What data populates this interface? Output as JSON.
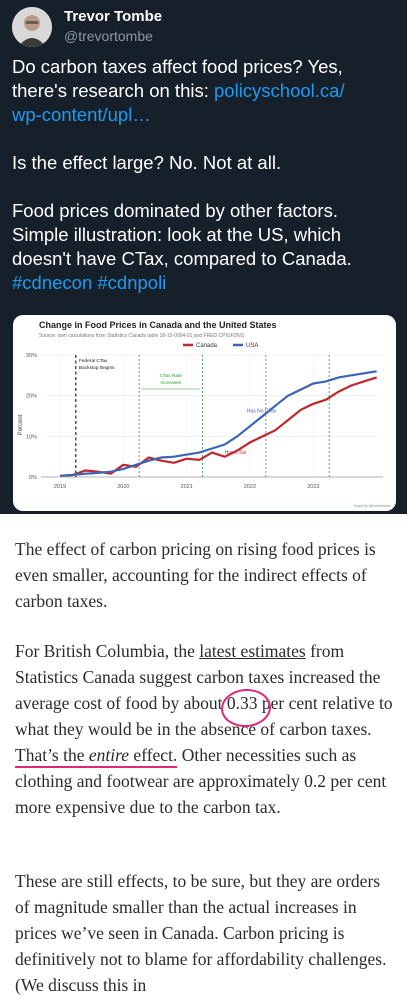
{
  "tweet": {
    "author_name": "Trevor Tombe",
    "author_handle": "@trevortombe",
    "line1": "Do carbon taxes affect food prices? Yes,",
    "line2_pre": "there's research on this: ",
    "link_part1": "policyschool.ca/",
    "link_part2": "wp-content/upl…",
    "para2": "Is the effect large? No. Not at all.",
    "para3_line1": "Food prices dominated by other factors.",
    "para3_line2": "Simple illustration: look at the US, which",
    "para3_line3": "doesn't have CTax, compared to Canada.",
    "hashtags": "#cdnecon #cdnpoli",
    "colors": {
      "background": "#15202b",
      "link": "#1d9bf0",
      "muted": "#8b98a5"
    }
  },
  "chart_data": {
    "type": "line",
    "title": "Change in Food Prices in Canada and the United States",
    "subtitle": "Source: own calculations from Statistics Canada table 18-10-0004-01 and FRED CPIUFDNS",
    "ylabel": "Percent",
    "xlabel": "",
    "x_ticks": [
      "2019",
      "2020",
      "2021",
      "2022",
      "2023"
    ],
    "y_ticks": [
      "0%",
      "10%",
      "20%",
      "30%"
    ],
    "ylim": [
      0,
      30
    ],
    "xlim": [
      2018.7,
      2024.1
    ],
    "legend_position": "top-center",
    "annotations": {
      "federal": "Federal CTax\nBackstop Begins",
      "rate": "CTax Rate\nIncreases",
      "has_no": "Has No CTax",
      "has": "Has CTax"
    },
    "credit": "Graph by @trevortombe",
    "series": [
      {
        "name": "Canada",
        "color": "#c1272d",
        "x": [
          2019.0,
          2019.2,
          2019.4,
          2019.6,
          2019.8,
          2020.0,
          2020.2,
          2020.4,
          2020.6,
          2020.8,
          2021.0,
          2021.2,
          2021.4,
          2021.6,
          2021.8,
          2022.0,
          2022.2,
          2022.4,
          2022.6,
          2022.8,
          2023.0,
          2023.2,
          2023.4,
          2023.6,
          2023.8,
          2024.0
        ],
        "y": [
          0.3,
          0.5,
          1.6,
          1.3,
          0.8,
          3.0,
          2.5,
          4.8,
          4.0,
          3.5,
          4.5,
          4.2,
          6.0,
          5.0,
          6.5,
          8.5,
          10.0,
          11.5,
          14.0,
          16.5,
          18.0,
          19.0,
          21.0,
          22.5,
          23.5,
          24.5
        ]
      },
      {
        "name": "USA",
        "color": "#3c64b4",
        "x": [
          2019.0,
          2019.2,
          2019.4,
          2019.6,
          2019.8,
          2020.0,
          2020.2,
          2020.4,
          2020.6,
          2020.8,
          2021.0,
          2021.2,
          2021.4,
          2021.6,
          2021.8,
          2022.0,
          2022.2,
          2022.4,
          2022.6,
          2022.8,
          2023.0,
          2023.2,
          2023.4,
          2023.6,
          2023.8,
          2024.0
        ],
        "y": [
          0.3,
          0.5,
          0.8,
          1.0,
          1.3,
          2.0,
          3.0,
          4.0,
          4.8,
          5.0,
          5.5,
          6.0,
          7.0,
          8.0,
          10.0,
          12.5,
          15.0,
          17.5,
          20.0,
          21.5,
          23.0,
          23.5,
          24.5,
          25.0,
          25.5,
          26.0
        ]
      }
    ]
  },
  "article": {
    "p1": "The effect of carbon pricing on rising food prices is even smaller, accounting for the indirect effects of carbon taxes.",
    "p2_a": "For British Columbia, the ",
    "p2_link": "latest estimates",
    "p2_b": " from Statistics Canada suggest carbon taxes increased the average cost of food by about ",
    "p2_num": "0.33",
    "p2_c": " per cent relative to what they would be in the absence of carbon taxes. ",
    "p2_d": "That’s the ",
    "p2_em": "entire",
    "p2_e": " effect.",
    "p2_f": " Other necessities such as clothing and footwear are approximately 0.2 per cent more expensive due to the carbon tax.",
    "p3": "These are still effects, to be sure, but they are orders of magnitude smaller than the actual increases in prices we’ve seen in Canada. Carbon pricing is definitively not to blame for affordability challenges. (We discuss this in"
  }
}
